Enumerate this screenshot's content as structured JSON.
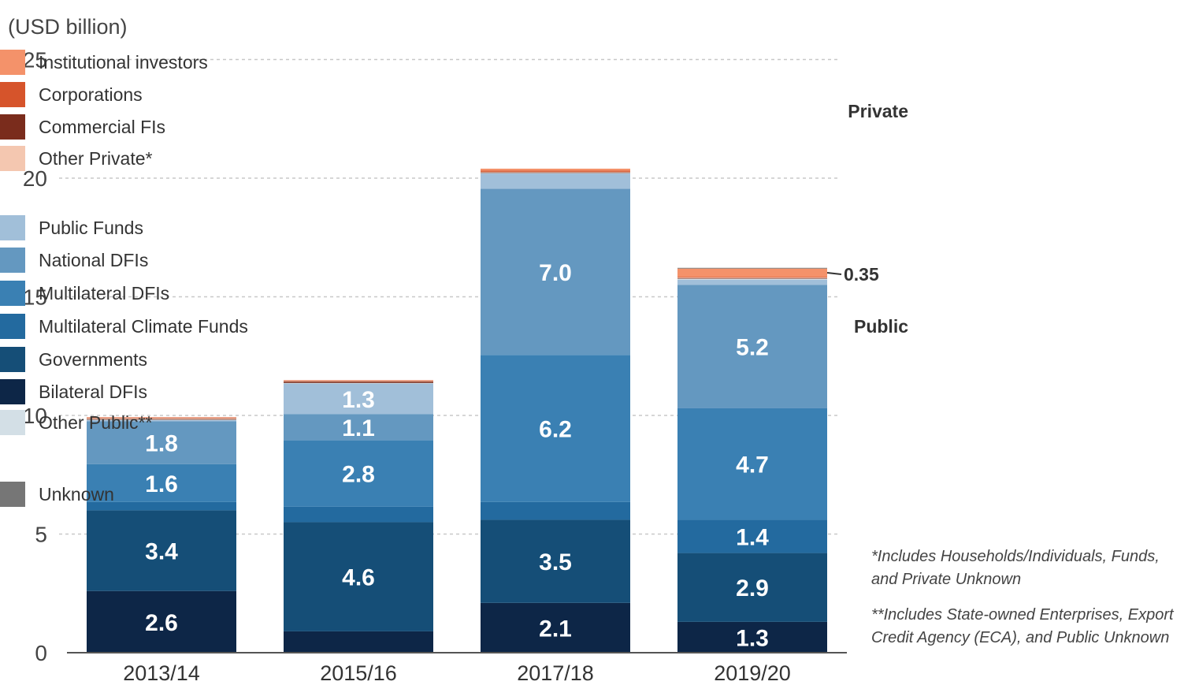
{
  "chart_data": {
    "type": "bar",
    "stacked": true,
    "ylabel": "(USD billion)",
    "ylim": [
      0,
      25
    ],
    "yticks": [
      "0",
      "5",
      "10",
      "15",
      "20",
      "$25"
    ],
    "categories": [
      "2013/14",
      "2015/16",
      "2017/18",
      "2019/20"
    ],
    "series": [
      {
        "name": "Bilateral DFIs",
        "color": "#0d2647",
        "values": [
          2.6,
          0.9,
          2.1,
          1.3
        ],
        "labels": [
          "2.6",
          "",
          "2.1",
          "1.3"
        ]
      },
      {
        "name": "Governments",
        "color": "#154e77",
        "values": [
          3.4,
          4.6,
          3.5,
          2.9
        ],
        "labels": [
          "3.4",
          "4.6",
          "3.5",
          "2.9"
        ]
      },
      {
        "name": "Multilateral Climate Funds",
        "color": "#236a9f",
        "values": [
          0.35,
          0.65,
          0.75,
          1.4
        ],
        "labels": [
          "",
          "",
          "",
          "1.4"
        ]
      },
      {
        "name": "Multilateral DFIs",
        "color": "#3a80b3",
        "values": [
          1.6,
          2.8,
          6.2,
          4.7
        ],
        "labels": [
          "1.6",
          "2.8",
          "6.2",
          "4.7"
        ]
      },
      {
        "name": "National DFIs",
        "color": "#6498c0",
        "values": [
          1.8,
          1.1,
          7.0,
          5.2
        ],
        "labels": [
          "1.8",
          "1.1",
          "7.0",
          "5.2"
        ]
      },
      {
        "name": "Public Funds",
        "color": "#a1bfd9",
        "values": [
          0.05,
          1.3,
          0.65,
          0.22
        ],
        "labels": [
          "",
          "1.3",
          "",
          ""
        ]
      },
      {
        "name": "Other Public**",
        "color": "#d3dfe6",
        "values": [
          0.03,
          0.02,
          0.02,
          0.05
        ],
        "labels": [
          "",
          "",
          "",
          ""
        ]
      },
      {
        "name": "Commercial FIs",
        "color": "#7a2c1c",
        "values": [
          0.02,
          0.06,
          0.03,
          0.02
        ],
        "labels": [
          "",
          "",
          "",
          ""
        ]
      },
      {
        "name": "Other Private*",
        "color": "#f4c7b0",
        "values": [
          0.05,
          0.02,
          0.02,
          0.03
        ],
        "labels": [
          "",
          "",
          "",
          ""
        ]
      },
      {
        "name": "Corporations",
        "color": "#d6542b",
        "values": [
          0.02,
          0.03,
          0.05,
          0.02
        ],
        "labels": [
          "",
          "",
          "",
          ""
        ]
      },
      {
        "name": "Institutional investors",
        "color": "#f4926a",
        "values": [
          0.0,
          0.0,
          0.08,
          0.35
        ],
        "labels": [
          "",
          "",
          "",
          ""
        ]
      },
      {
        "name": "Unknown",
        "color": "#767676",
        "values": [
          0.0,
          0.0,
          0.0,
          0.03
        ],
        "labels": [
          "",
          "",
          "",
          ""
        ]
      }
    ],
    "callout": {
      "label": "0.35",
      "category": "2019/20",
      "series": "Institutional investors"
    },
    "grid": true,
    "legend_position": "right"
  },
  "legend": {
    "private_label": "Private",
    "public_label": "Public",
    "private_items": [
      {
        "name": "Institutional investors",
        "color": "#f4926a"
      },
      {
        "name": "Corporations",
        "color": "#d6542b"
      },
      {
        "name": "Commercial FIs",
        "color": "#7a2c1c"
      },
      {
        "name": "Other Private*",
        "color": "#f4c7b0"
      }
    ],
    "public_items": [
      {
        "name": "Public Funds",
        "color": "#a1bfd9"
      },
      {
        "name": "National DFIs",
        "color": "#6498c0"
      },
      {
        "name": "Multilateral DFIs",
        "color": "#3a80b3"
      },
      {
        "name": "Multilateral Climate Funds",
        "color": "#236a9f"
      },
      {
        "name": "Governments",
        "color": "#154e77"
      },
      {
        "name": "Bilateral DFIs",
        "color": "#0d2647"
      },
      {
        "name": "Other Public**",
        "color": "#d3dfe6"
      }
    ],
    "unknown_item": {
      "name": "Unknown",
      "color": "#767676"
    }
  },
  "notes": {
    "private_note": [
      "*Includes Households/Individuals, Funds,",
      "and Private Unknown"
    ],
    "public_note": [
      "**Includes State-owned Enterprises, Export",
      "Credit Agency (ECA), and Public Unknown"
    ]
  }
}
